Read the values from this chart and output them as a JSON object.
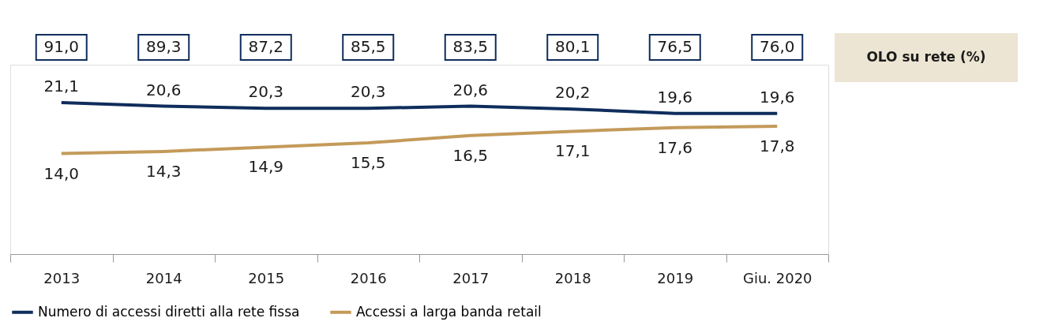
{
  "chart_data": {
    "type": "line",
    "categories": [
      "2013",
      "2014",
      "2015",
      "2016",
      "2017",
      "2018",
      "2019",
      "Giu. 2020"
    ],
    "series": [
      {
        "name": "Numero di accessi diretti alla rete fissa",
        "color": "#0f2d5c",
        "values": [
          21.1,
          20.6,
          20.3,
          20.3,
          20.6,
          20.2,
          19.6,
          19.6
        ],
        "value_labels": [
          "21,1",
          "20,6",
          "20,3",
          "20,3",
          "20,6",
          "20,2",
          "19,6",
          "19,6"
        ]
      },
      {
        "name": "Accessi a larga banda retail",
        "color": "#c49a5a",
        "values": [
          14.0,
          14.3,
          14.9,
          15.5,
          16.5,
          17.1,
          17.6,
          17.8
        ],
        "value_labels": [
          "14,0",
          "14,3",
          "14,9",
          "15,5",
          "16,5",
          "17,1",
          "17,6",
          "17,8"
        ]
      }
    ],
    "annotations": [
      "OLO su rete (%)",
      "91,0",
      "89,3",
      "87,2",
      "85,5",
      "83,5",
      "80,1",
      "76,5",
      "76,0"
    ],
    "grid": false,
    "legend": "bottom",
    "marker": "none",
    "line_style": "solid"
  }
}
